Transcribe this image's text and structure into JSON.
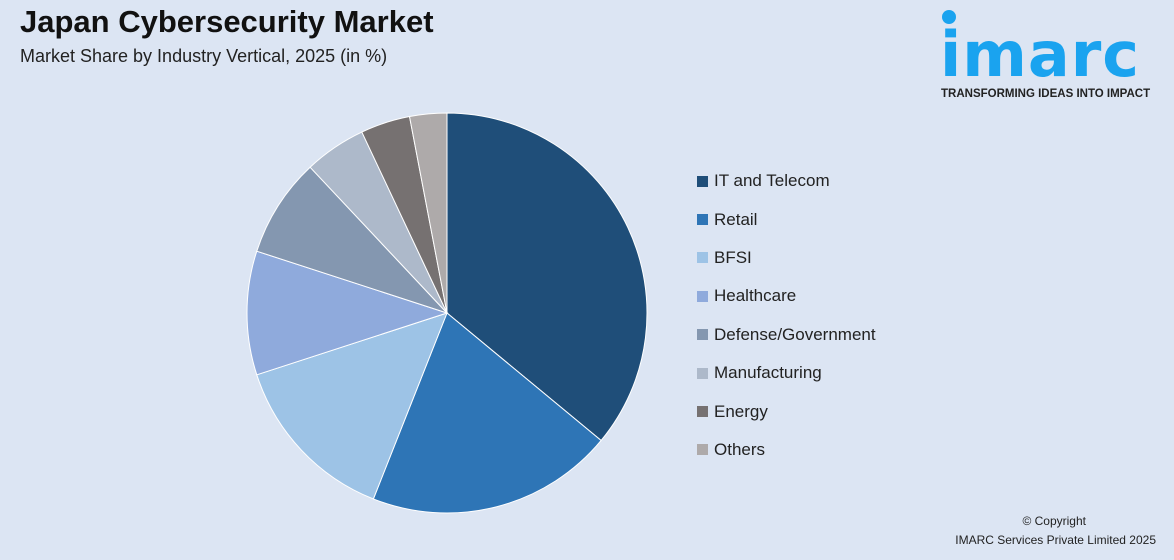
{
  "header": {
    "title": "Japan Cybersecurity Market",
    "subtitle": "Market Share by Industry Vertical, 2025 (in %)"
  },
  "logo": {
    "text": "imarc",
    "tagline": "TRANSFORMING IDEAS INTO IMPACT",
    "color": "#1aa3ef"
  },
  "chart_data": {
    "type": "pie",
    "title": "Japan Cybersecurity Market",
    "subtitle": "Market Share by Industry Vertical, 2025 (in %)",
    "legend_position": "right",
    "categories": [
      "IT and Telecom",
      "Retail",
      "BFSI",
      "Healthcare",
      "Defense/Government",
      "Manufacturing",
      "Energy",
      "Others"
    ],
    "values": [
      36,
      20,
      14,
      10,
      8,
      5,
      4,
      3
    ],
    "colors": [
      "#1f4e79",
      "#2e75b6",
      "#9dc3e6",
      "#8faadc",
      "#8497b0",
      "#adb9ca",
      "#767171",
      "#aeaaaa"
    ]
  },
  "footer": {
    "copyright": "© Copyright",
    "company": "IMARC Services Private Limited 2025"
  }
}
